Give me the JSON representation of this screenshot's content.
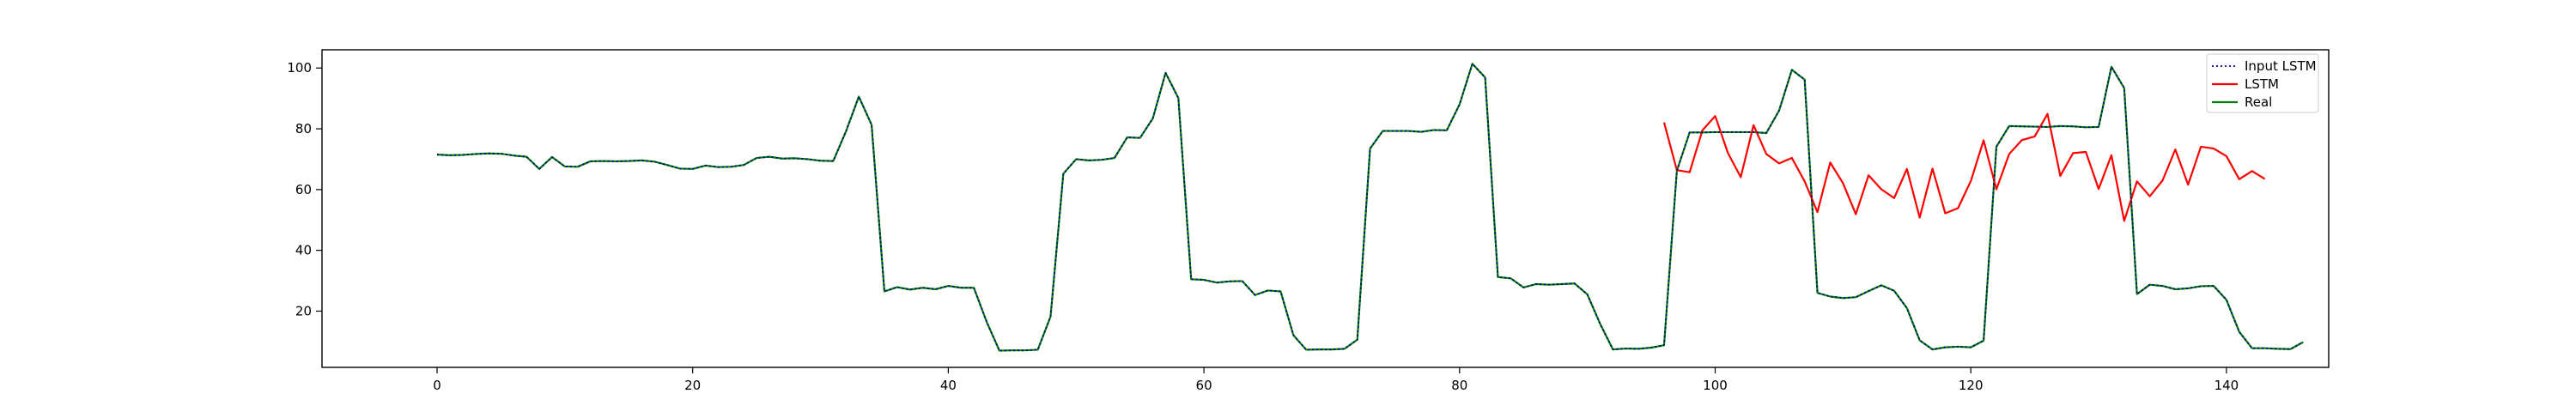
{
  "chart_data": {
    "type": "line",
    "title": "",
    "xlabel": "",
    "ylabel": "",
    "xlim": [
      -9,
      148
    ],
    "ylim": [
      1.5,
      106
    ],
    "xticks": [
      0,
      20,
      40,
      60,
      80,
      100,
      120,
      140
    ],
    "yticks": [
      20,
      40,
      60,
      80,
      100
    ],
    "legend_position": "top-right",
    "grid": false,
    "series": [
      {
        "name": "Input LSTM",
        "color": "#00008b",
        "style": "dotted",
        "x_start": 0,
        "values": [
          71.5,
          71.3,
          71.4,
          71.7,
          71.9,
          71.8,
          71.2,
          70.8,
          66.8,
          70.7,
          67.6,
          67.5,
          69.3,
          69.4,
          69.3,
          69.4,
          69.6,
          69.2,
          68.1,
          66.9,
          66.8,
          67.9,
          67.4,
          67.5,
          68.1,
          70.4,
          70.8,
          70.2,
          70.3,
          70.0,
          69.5,
          69.4,
          79.2,
          90.6,
          81.3,
          26.5,
          27.9,
          27.1,
          27.7,
          27.2,
          28.3,
          27.7,
          27.7,
          16.5,
          7.0,
          7.1,
          7.1,
          7.3,
          18.2,
          65.2,
          70.0,
          69.6,
          69.8,
          70.4,
          77.2,
          77.0,
          83.4,
          98.4,
          90.1,
          30.5,
          30.3,
          29.4,
          29.8,
          29.9,
          25.3,
          26.8,
          26.5,
          12.1,
          7.3,
          7.4,
          7.4,
          7.6,
          10.6,
          73.5,
          79.3,
          79.3,
          79.3,
          79.0,
          79.6,
          79.5,
          88.0,
          101.4,
          96.9,
          31.2,
          30.8,
          27.8,
          28.9,
          28.7,
          28.9,
          29.1,
          25.5,
          15.8,
          7.4,
          7.7,
          7.6,
          8.0,
          8.8,
          66.2,
          78.8,
          78.8,
          78.9,
          78.9,
          78.9,
          78.9,
          78.6,
          86.0,
          99.4,
          96.2,
          26.0,
          24.8,
          24.3,
          24.6,
          26.6,
          28.5,
          26.7,
          21.0,
          10.4,
          7.4,
          8.1,
          8.3,
          8.1,
          10.3,
          74.1,
          80.9,
          80.8,
          80.7,
          80.6,
          80.9,
          80.8,
          80.5,
          80.6,
          100.4,
          93.4,
          25.6,
          28.7,
          28.3,
          27.2,
          27.5,
          28.2,
          28.3,
          23.7,
          13.2,
          7.8,
          7.8,
          7.6,
          7.5,
          9.8
        ]
      },
      {
        "name": "LSTM",
        "color": "#ff0000",
        "style": "solid",
        "x_start": 96,
        "values": [
          82.1,
          66.4,
          65.7,
          79.5,
          84.2,
          72.0,
          64.1,
          81.2,
          71.7,
          68.6,
          70.4,
          62.7,
          52.6,
          68.9,
          62.1,
          51.9,
          64.7,
          60.1,
          57.2,
          66.8,
          50.8,
          66.9,
          52.2,
          53.9,
          62.8,
          76.2,
          60.1,
          71.7,
          76.3,
          77.5,
          84.9,
          64.5,
          72.0,
          72.4,
          60.2,
          71.3,
          49.7,
          62.7,
          57.8,
          63.0,
          73.2,
          61.6,
          74.1,
          73.5,
          71.0,
          63.4,
          66.1,
          63.5
        ]
      },
      {
        "name": "Real",
        "color": "#008000",
        "style": "solid",
        "x_start": 0,
        "values": [
          71.5,
          71.3,
          71.4,
          71.7,
          71.9,
          71.8,
          71.2,
          70.8,
          66.8,
          70.7,
          67.6,
          67.5,
          69.3,
          69.4,
          69.3,
          69.4,
          69.6,
          69.2,
          68.1,
          66.9,
          66.8,
          67.9,
          67.4,
          67.5,
          68.1,
          70.4,
          70.8,
          70.2,
          70.3,
          70.0,
          69.5,
          69.4,
          79.2,
          90.6,
          81.3,
          26.5,
          27.9,
          27.1,
          27.7,
          27.2,
          28.3,
          27.7,
          27.7,
          16.5,
          7.0,
          7.1,
          7.1,
          7.3,
          18.2,
          65.2,
          70.0,
          69.6,
          69.8,
          70.4,
          77.2,
          77.0,
          83.4,
          98.4,
          90.1,
          30.5,
          30.3,
          29.4,
          29.8,
          29.9,
          25.3,
          26.8,
          26.5,
          12.1,
          7.3,
          7.4,
          7.4,
          7.6,
          10.6,
          73.5,
          79.3,
          79.3,
          79.3,
          79.0,
          79.6,
          79.5,
          88.0,
          101.4,
          96.9,
          31.2,
          30.8,
          27.8,
          28.9,
          28.7,
          28.9,
          29.1,
          25.5,
          15.8,
          7.4,
          7.7,
          7.6,
          8.0,
          8.8,
          66.2,
          78.8,
          78.8,
          78.9,
          78.9,
          78.9,
          78.9,
          78.6,
          86.0,
          99.4,
          96.2,
          26.0,
          24.8,
          24.3,
          24.6,
          26.6,
          28.5,
          26.7,
          21.0,
          10.4,
          7.4,
          8.1,
          8.3,
          8.1,
          10.3,
          74.1,
          80.9,
          80.8,
          80.7,
          80.6,
          80.9,
          80.8,
          80.5,
          80.6,
          100.4,
          93.4,
          25.6,
          28.7,
          28.3,
          27.2,
          27.5,
          28.2,
          28.3,
          23.7,
          13.2,
          7.8,
          7.8,
          7.6,
          7.5,
          9.8
        ]
      }
    ]
  }
}
